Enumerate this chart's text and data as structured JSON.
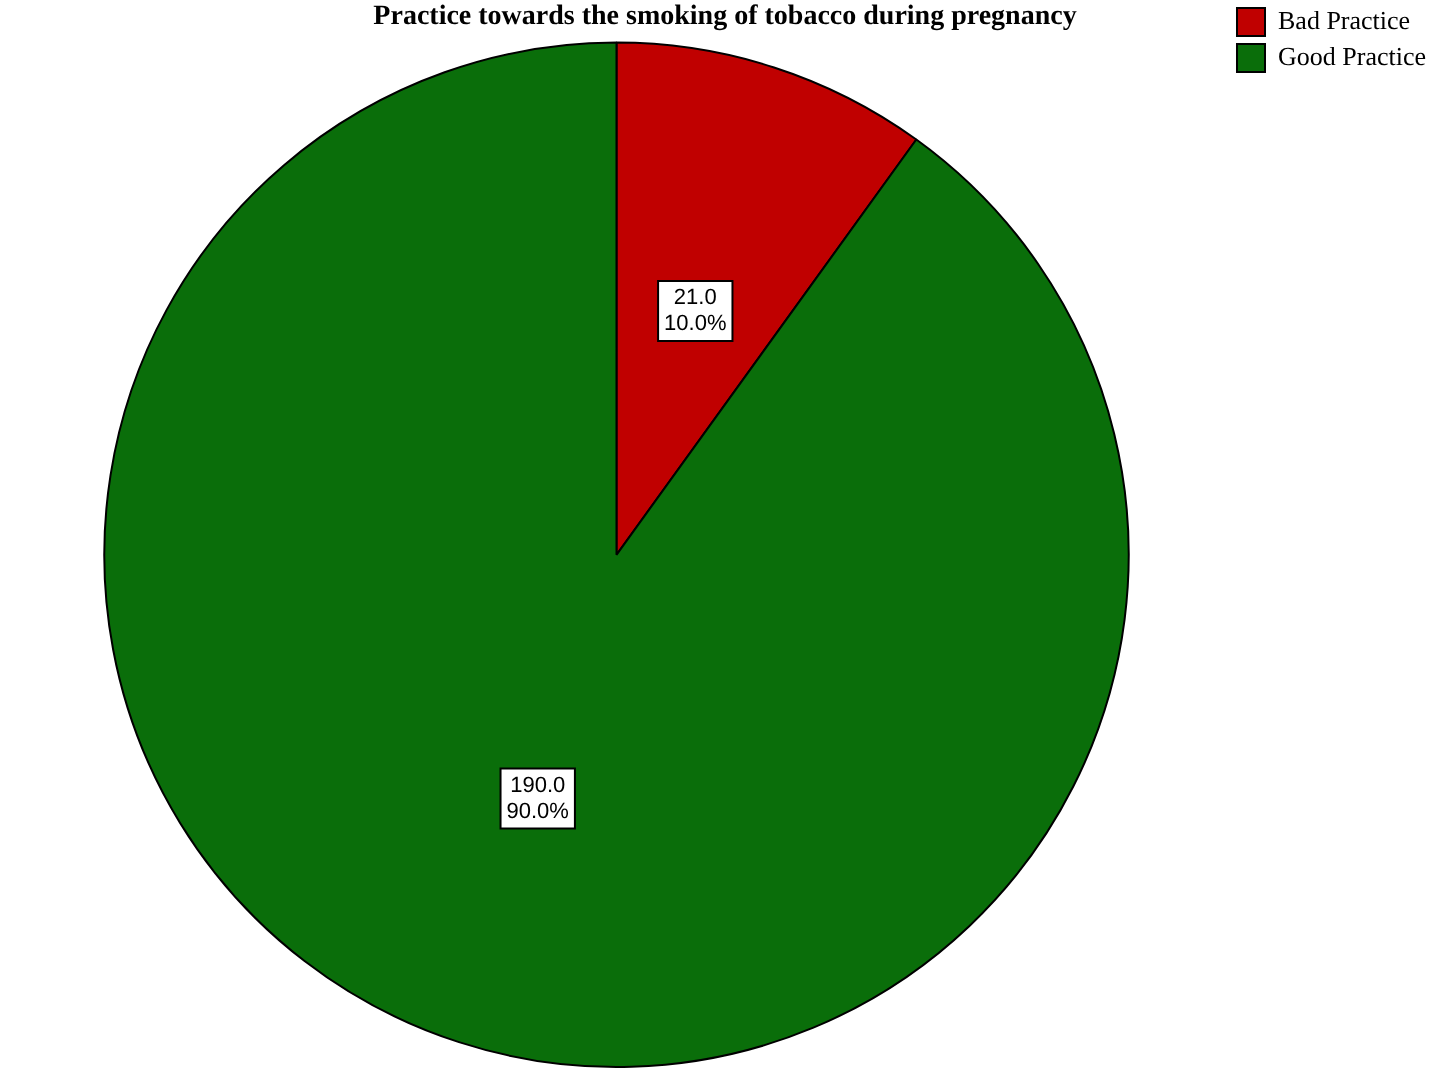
{
  "chart_data": {
    "type": "pie",
    "title": "Practice towards the smoking of tobacco during pregnancy",
    "categories": [
      "Bad Practice",
      "Good Practice"
    ],
    "values": [
      21,
      190
    ],
    "colors": [
      "#c00000",
      "#0a6e0a"
    ],
    "value_labels": [
      "21.0\n10.0%",
      "190.0\n90.0%"
    ],
    "legend": "top right"
  }
}
